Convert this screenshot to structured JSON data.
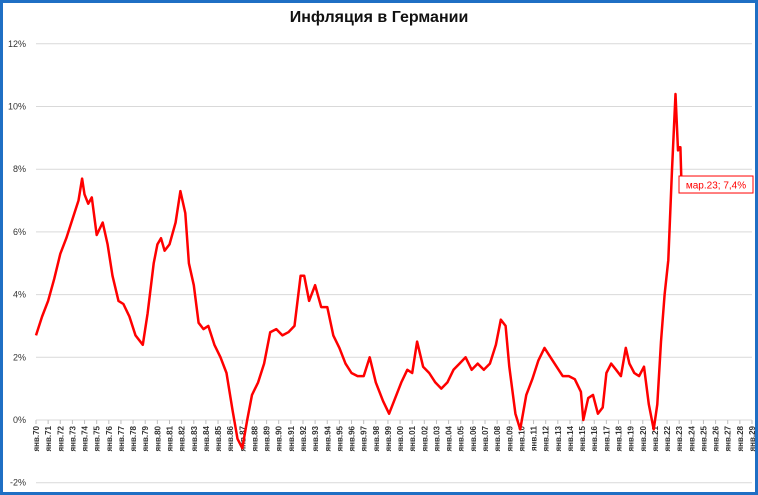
{
  "chart_data": {
    "type": "line",
    "title": "Инфляция в Германии",
    "xlabel": "",
    "ylabel": "",
    "ylim": [
      -2,
      12
    ],
    "y_ticks": [
      "-2%",
      "0%",
      "2%",
      "4%",
      "6%",
      "8%",
      "10%",
      "12%"
    ],
    "grid": true,
    "legend": null,
    "x_tick_labels": [
      "янв.70",
      "янв.71",
      "янв.72",
      "янв.73",
      "янв.74",
      "янв.75",
      "янв.76",
      "янв.77",
      "янв.78",
      "янв.79",
      "янв.80",
      "янв.81",
      "янв.82",
      "янв.83",
      "янв.84",
      "янв.85",
      "янв.86",
      "янв.87",
      "янв.88",
      "янв.89",
      "янв.90",
      "янв.91",
      "янв.92",
      "янв.93",
      "янв.94",
      "янв.95",
      "янв.96",
      "янв.97",
      "янв.98",
      "янв.99",
      "янв.00",
      "янв.01",
      "янв.02",
      "янв.03",
      "янв.04",
      "янв.05",
      "янв.06",
      "янв.07",
      "янв.08",
      "янв.09",
      "янв.10",
      "янв.11",
      "янв.12",
      "янв.13",
      "янв.14",
      "янв.15",
      "янв.16",
      "янв.17",
      "янв.18",
      "янв.19",
      "янв.20",
      "янв.21",
      "янв.22",
      "янв.23",
      "янв.24",
      "янв.25",
      "янв.26",
      "янв.27",
      "янв.28",
      "янв.29"
    ],
    "series": [
      {
        "name": "Инфляция в Германии, % г/г",
        "color": "#ff0000",
        "x": [
          1970.0,
          1970.5,
          1971.0,
          1971.5,
          1972.0,
          1972.5,
          1973.0,
          1973.5,
          1973.8,
          1974.0,
          1974.3,
          1974.6,
          1975.0,
          1975.5,
          1975.9,
          1976.3,
          1976.8,
          1977.2,
          1977.7,
          1978.2,
          1978.8,
          1979.2,
          1979.7,
          1980.0,
          1980.3,
          1980.6,
          1981.0,
          1981.5,
          1981.9,
          1982.3,
          1982.6,
          1983.0,
          1983.4,
          1983.8,
          1984.2,
          1984.7,
          1985.2,
          1985.7,
          1986.2,
          1986.6,
          1987.0,
          1987.4,
          1987.8,
          1988.3,
          1988.8,
          1989.3,
          1989.8,
          1990.3,
          1990.8,
          1991.3,
          1991.8,
          1992.1,
          1992.5,
          1993.0,
          1993.5,
          1994.0,
          1994.5,
          1995.0,
          1995.5,
          1996.0,
          1996.5,
          1997.0,
          1997.5,
          1998.0,
          1998.6,
          1999.1,
          1999.6,
          2000.1,
          2000.6,
          2001.0,
          2001.4,
          2001.9,
          2002.4,
          2002.9,
          2003.4,
          2003.9,
          2004.4,
          2004.9,
          2005.4,
          2005.9,
          2006.4,
          2006.9,
          2007.4,
          2007.9,
          2008.3,
          2008.7,
          2009.0,
          2009.5,
          2009.9,
          2010.4,
          2010.9,
          2011.4,
          2011.9,
          2012.4,
          2012.9,
          2013.4,
          2013.9,
          2014.4,
          2014.9,
          2015.1,
          2015.5,
          2015.9,
          2016.3,
          2016.7,
          2017.0,
          2017.4,
          2017.8,
          2018.2,
          2018.6,
          2018.9,
          2019.3,
          2019.7,
          2020.1,
          2020.5,
          2020.9,
          2021.2,
          2021.5,
          2021.8,
          2022.1,
          2022.4,
          2022.7,
          2022.9,
          2023.0,
          2023.1,
          2023.2
        ],
        "values": [
          2.7,
          3.3,
          3.8,
          4.5,
          5.3,
          5.8,
          6.4,
          7.0,
          7.7,
          7.2,
          6.9,
          7.1,
          5.9,
          6.3,
          5.6,
          4.6,
          3.8,
          3.7,
          3.3,
          2.7,
          2.4,
          3.4,
          5.0,
          5.6,
          5.8,
          5.4,
          5.6,
          6.3,
          7.3,
          6.6,
          5.0,
          4.3,
          3.1,
          2.9,
          3.0,
          2.4,
          2.0,
          1.5,
          0.3,
          -0.6,
          -0.9,
          0.0,
          0.8,
          1.2,
          1.8,
          2.8,
          2.9,
          2.7,
          2.8,
          3.0,
          4.6,
          4.6,
          3.8,
          4.3,
          3.6,
          3.6,
          2.7,
          2.3,
          1.8,
          1.5,
          1.4,
          1.4,
          2.0,
          1.2,
          0.6,
          0.2,
          0.7,
          1.2,
          1.6,
          1.5,
          2.5,
          1.7,
          1.5,
          1.2,
          1.0,
          1.2,
          1.6,
          1.8,
          2.0,
          1.6,
          1.8,
          1.6,
          1.8,
          2.4,
          3.2,
          3.0,
          1.7,
          0.2,
          -0.3,
          0.8,
          1.3,
          1.9,
          2.3,
          2.0,
          1.7,
          1.4,
          1.4,
          1.3,
          0.9,
          0.0,
          0.7,
          0.8,
          0.2,
          0.4,
          1.5,
          1.8,
          1.6,
          1.4,
          2.3,
          1.8,
          1.5,
          1.4,
          1.7,
          0.5,
          -0.3,
          0.5,
          2.5,
          4.0,
          5.1,
          7.9,
          10.4,
          8.6,
          8.7,
          8.7,
          7.4
        ]
      }
    ],
    "annotations": [
      {
        "text": "мар.23; 7,4%",
        "x": 2023.2,
        "y": 7.4
      }
    ]
  }
}
